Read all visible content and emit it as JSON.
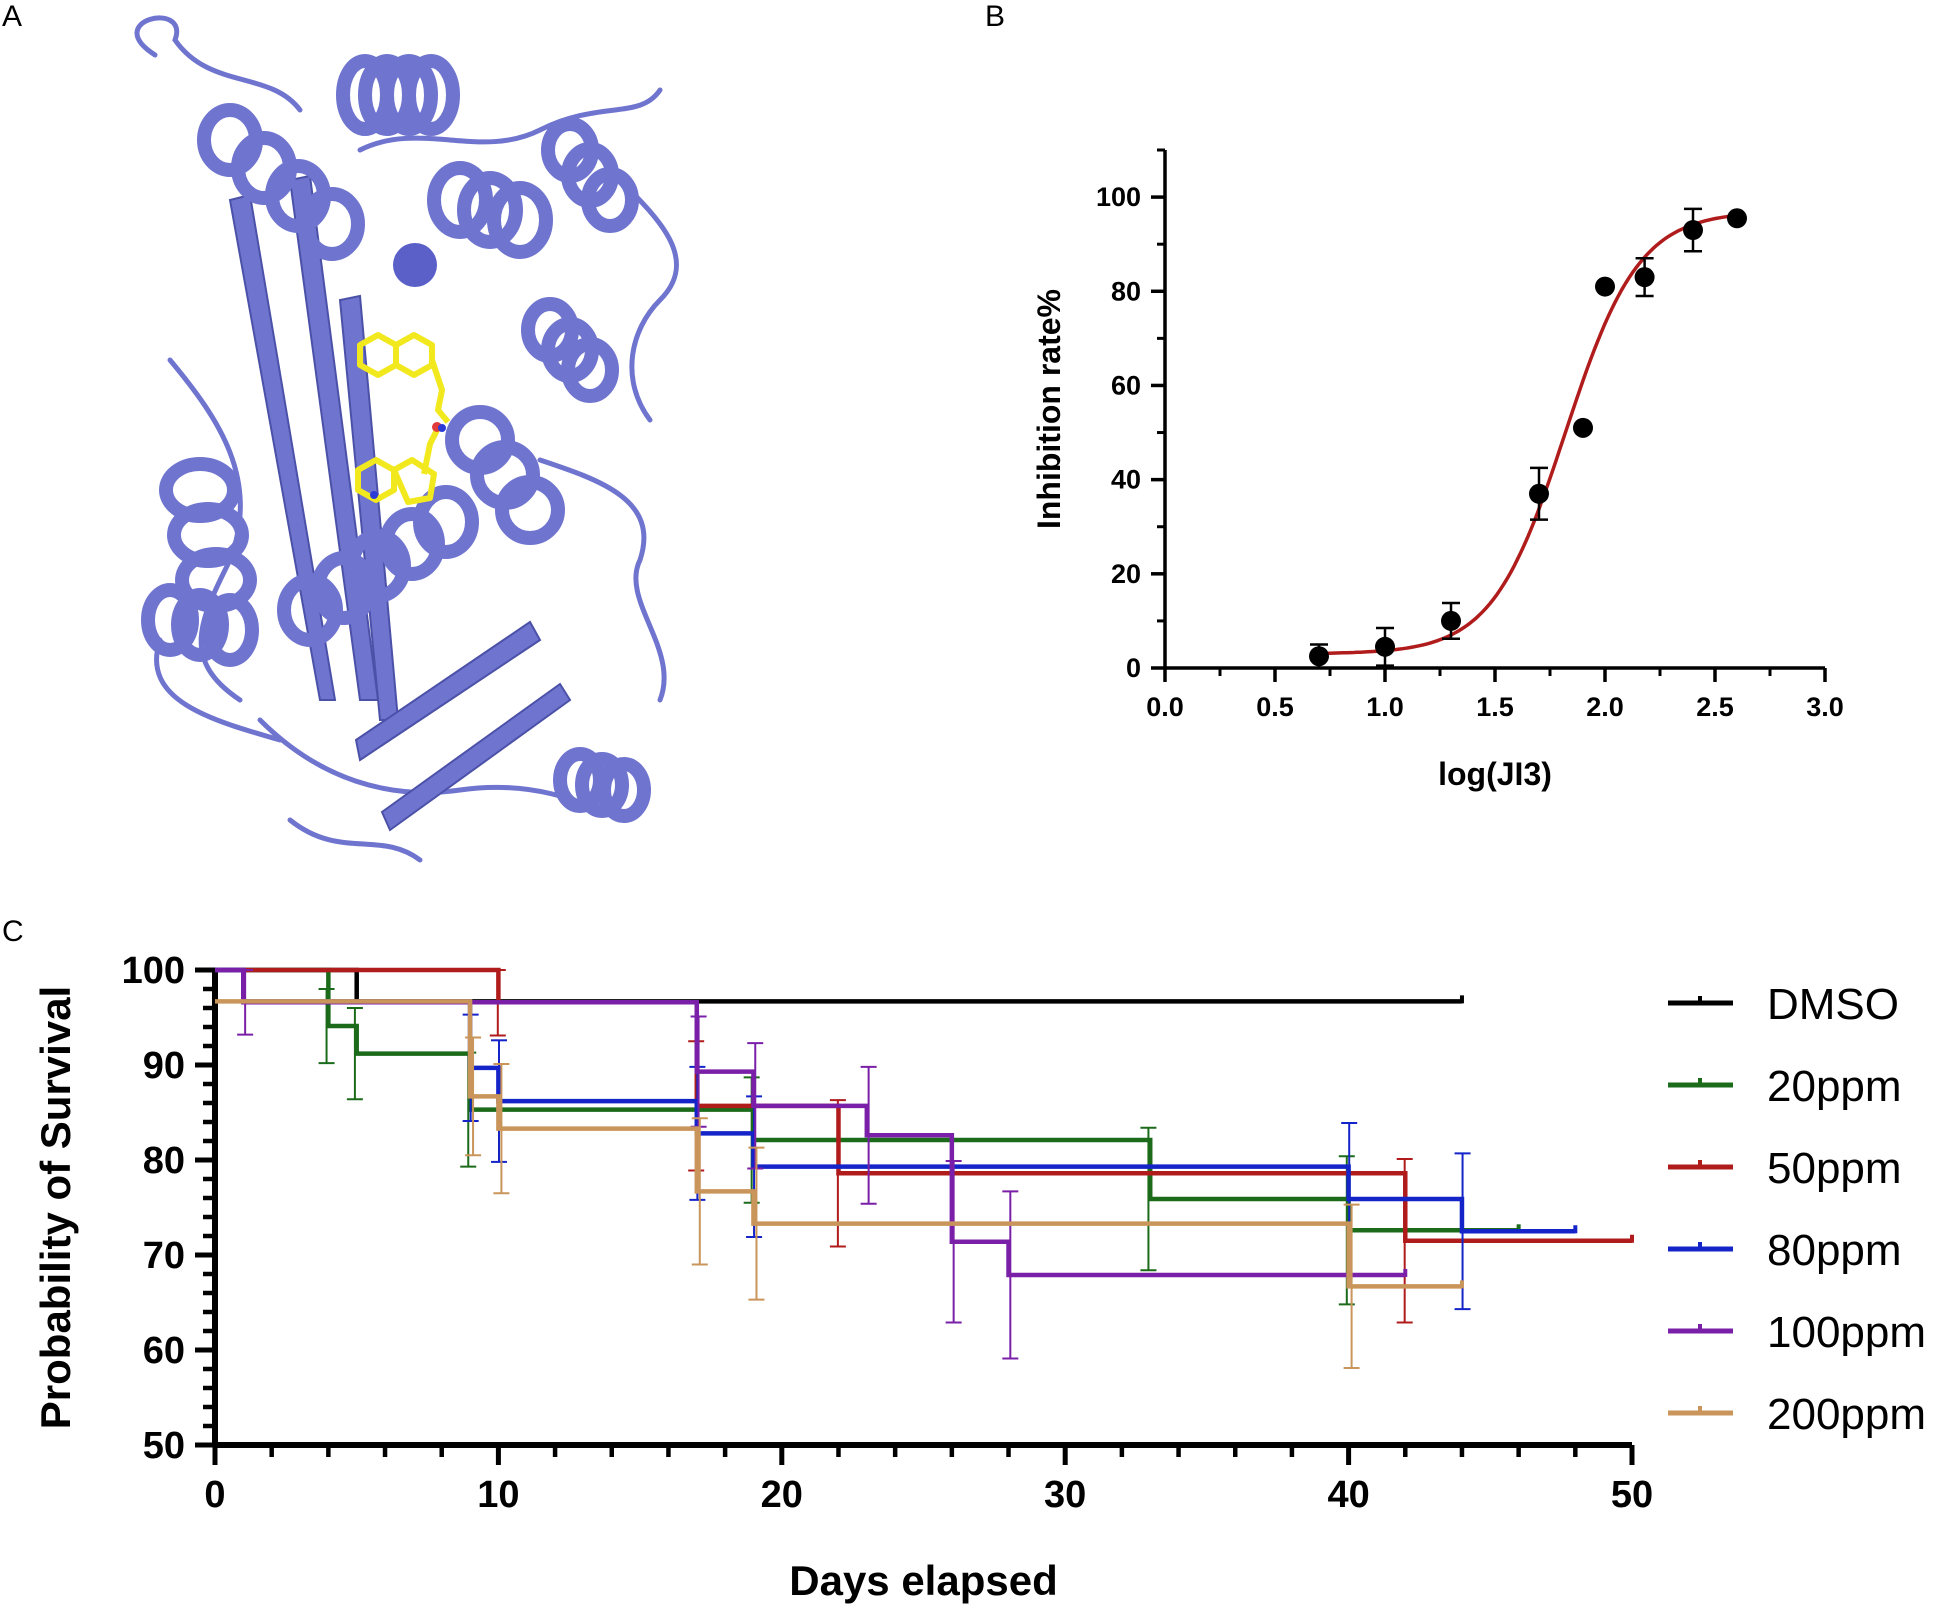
{
  "panels": {
    "a": "A",
    "b": "B",
    "c": "C"
  },
  "structure": {
    "protein_color": "#6f74cf",
    "ligand_color": "#f2e81e",
    "nitrogen_color": "#2b3bd6",
    "oxygen_color": "#e23b3b"
  },
  "chart_data": [
    {
      "id": "B",
      "type": "scatter",
      "xlabel": "log(JI3)",
      "ylabel": "Inhibition rate%",
      "xlim": [
        0,
        3.0
      ],
      "ylim": [
        0,
        110
      ],
      "xticks": [
        "0.0",
        "0.5",
        "1.0",
        "1.5",
        "2.0",
        "2.5",
        "3.0"
      ],
      "yticks": [
        "0",
        "20",
        "40",
        "60",
        "80",
        "100"
      ],
      "points": [
        {
          "x": 0.7,
          "y": 2.5,
          "err": 2.5
        },
        {
          "x": 1.0,
          "y": 4.5,
          "err": 4.0
        },
        {
          "x": 1.3,
          "y": 10.0,
          "err": 3.8
        },
        {
          "x": 1.7,
          "y": 37.0,
          "err": 5.5
        },
        {
          "x": 1.9,
          "y": 51.0,
          "err": 0
        },
        {
          "x": 2.0,
          "y": 81.0,
          "err": 0
        },
        {
          "x": 2.18,
          "y": 83.0,
          "err": 4.0
        },
        {
          "x": 2.4,
          "y": 93.0,
          "err": 4.5
        },
        {
          "x": 2.6,
          "y": 95.5,
          "err": 0
        }
      ],
      "fit": {
        "bottom": 3,
        "top": 97,
        "logIC50": 1.82,
        "hill": 2.6,
        "x_range": [
          0.7,
          2.6
        ]
      },
      "point_color": "#000000",
      "fit_color": "#b01c1c"
    },
    {
      "id": "C",
      "type": "line",
      "step": true,
      "xlabel": "Days elapsed",
      "ylabel": "Probability of Survival",
      "xlim": [
        0,
        50
      ],
      "ylim": [
        50,
        100
      ],
      "xticks": [
        "0",
        "10",
        "20",
        "30",
        "40",
        "50"
      ],
      "yticks": [
        "50",
        "60",
        "70",
        "80",
        "90",
        "100"
      ],
      "series": [
        {
          "name": "DMSO",
          "color": "#000000",
          "steps": [
            [
              0,
              100
            ],
            [
              5,
              96.7
            ],
            [
              44,
              96.7
            ]
          ],
          "errs": []
        },
        {
          "name": "20ppm",
          "color": "#1b6b1b",
          "steps": [
            [
              0,
              100
            ],
            [
              4,
              94.1
            ],
            [
              5,
              91.2
            ],
            [
              9,
              85.3
            ],
            [
              19,
              82.1
            ],
            [
              33,
              75.9
            ],
            [
              40,
              72.6
            ],
            [
              46,
              72.6
            ]
          ],
          "errs": [
            [
              4,
              94.1,
              3.9
            ],
            [
              5,
              91.2,
              4.8
            ],
            [
              9,
              85.3,
              6.0
            ],
            [
              19,
              82.1,
              6.6
            ],
            [
              33,
              75.9,
              7.5
            ],
            [
              40,
              72.6,
              7.8
            ]
          ]
        },
        {
          "name": "50ppm",
          "color": "#b01c1c",
          "steps": [
            [
              0,
              100
            ],
            [
              10,
              96.6
            ],
            [
              17,
              85.7
            ],
            [
              22,
              78.6
            ],
            [
              42,
              71.5
            ],
            [
              50,
              71.5
            ]
          ],
          "errs": [
            [
              10,
              96.6,
              3.5
            ],
            [
              17,
              85.7,
              6.8
            ],
            [
              22,
              78.6,
              7.7
            ],
            [
              42,
              71.5,
              8.6
            ]
          ]
        },
        {
          "name": "80ppm",
          "color": "#1424c8",
          "steps": [
            [
              0,
              100
            ],
            [
              1,
              96.7
            ],
            [
              9,
              89.7
            ],
            [
              10,
              86.2
            ],
            [
              17,
              82.8
            ],
            [
              19,
              79.3
            ],
            [
              40,
              75.9
            ],
            [
              44,
              72.5
            ],
            [
              48,
              72.5
            ]
          ],
          "errs": [
            [
              9,
              89.7,
              5.6
            ],
            [
              10,
              86.2,
              6.4
            ],
            [
              17,
              82.8,
              7.0
            ],
            [
              19,
              79.3,
              7.4
            ],
            [
              40,
              75.9,
              8.0
            ],
            [
              44,
              72.5,
              8.2
            ]
          ]
        },
        {
          "name": "100ppm",
          "color": "#7a1fa8",
          "steps": [
            [
              0,
              100
            ],
            [
              1,
              96.6
            ],
            [
              17,
              89.3
            ],
            [
              19,
              85.7
            ],
            [
              23,
              82.6
            ],
            [
              26,
              71.4
            ],
            [
              28,
              67.9
            ],
            [
              42,
              67.9
            ]
          ],
          "errs": [
            [
              1,
              96.6,
              3.4
            ],
            [
              17,
              89.3,
              5.8
            ],
            [
              19,
              85.7,
              6.6
            ],
            [
              23,
              82.6,
              7.2
            ],
            [
              26,
              71.4,
              8.5
            ],
            [
              28,
              67.9,
              8.8
            ]
          ]
        },
        {
          "name": "200ppm",
          "color": "#c9955a",
          "steps": [
            [
              0,
              96.7
            ],
            [
              9,
              86.7
            ],
            [
              10,
              83.3
            ],
            [
              17,
              76.7
            ],
            [
              19,
              73.3
            ],
            [
              40,
              66.7
            ],
            [
              44,
              66.7
            ]
          ],
          "errs": [
            [
              9,
              86.7,
              6.2
            ],
            [
              10,
              83.3,
              6.8
            ],
            [
              17,
              76.7,
              7.7
            ],
            [
              19,
              73.3,
              8.0
            ],
            [
              40,
              66.7,
              8.6
            ]
          ]
        }
      ],
      "legend": "right"
    }
  ]
}
